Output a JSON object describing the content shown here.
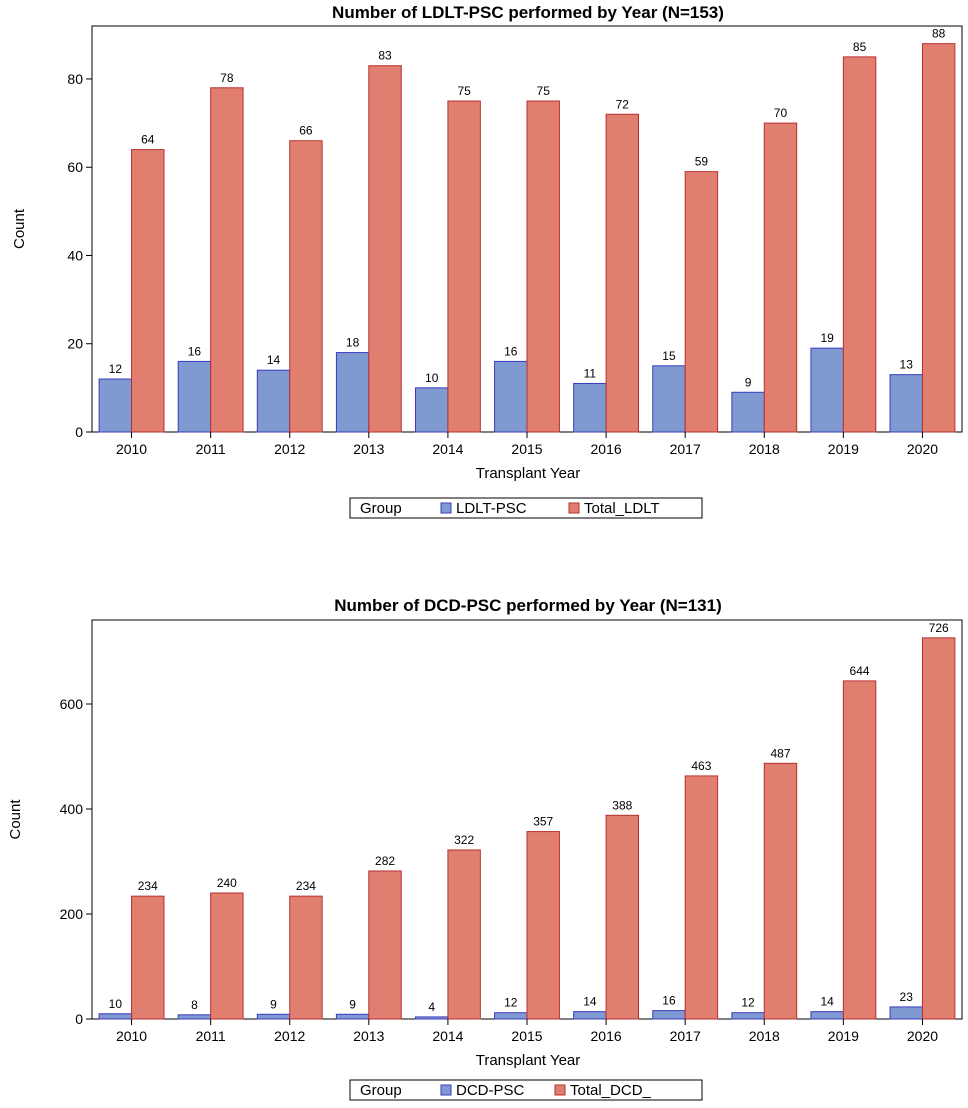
{
  "chart_data": [
    {
      "type": "bar",
      "title": "Number of LDLT-PSC performed by Year (N=153)",
      "xlabel": "Transplant Year",
      "ylabel": "Count",
      "categories": [
        "2010",
        "2011",
        "2012",
        "2013",
        "2014",
        "2015",
        "2016",
        "2017",
        "2018",
        "2019",
        "2020"
      ],
      "series": [
        {
          "name": "LDLT-PSC",
          "color": "#7f99d1",
          "stroke": "#3b3bbf",
          "values": [
            12,
            16,
            14,
            18,
            10,
            16,
            11,
            15,
            9,
            19,
            13
          ]
        },
        {
          "name": "Total_LDLT",
          "color": "#e07f70",
          "stroke": "#b83030",
          "values": [
            64,
            78,
            66,
            83,
            75,
            75,
            72,
            59,
            70,
            85,
            88
          ]
        }
      ],
      "ylim": [
        0,
        92
      ],
      "yticks": [
        0,
        20,
        40,
        60,
        80
      ],
      "legend_title": "Group",
      "legend_position": "bottom-center",
      "grid": false
    },
    {
      "type": "bar",
      "title": "Number of DCD-PSC performed by Year (N=131)",
      "xlabel": "Transplant Year",
      "ylabel": "Count",
      "categories": [
        "2010",
        "2011",
        "2012",
        "2013",
        "2014",
        "2015",
        "2016",
        "2017",
        "2018",
        "2019",
        "2020"
      ],
      "series": [
        {
          "name": "DCD-PSC",
          "color": "#7f99d1",
          "stroke": "#3b3bbf",
          "values": [
            10,
            8,
            9,
            9,
            4,
            12,
            14,
            16,
            12,
            14,
            23
          ]
        },
        {
          "name": "Total_DCD_",
          "color": "#e07f70",
          "stroke": "#b83030",
          "values": [
            234,
            240,
            234,
            282,
            322,
            357,
            388,
            463,
            487,
            644,
            726
          ]
        }
      ],
      "ylim": [
        0,
        760
      ],
      "yticks": [
        0,
        200,
        400,
        600
      ],
      "legend_title": "Group",
      "legend_position": "bottom-center",
      "grid": false
    }
  ]
}
